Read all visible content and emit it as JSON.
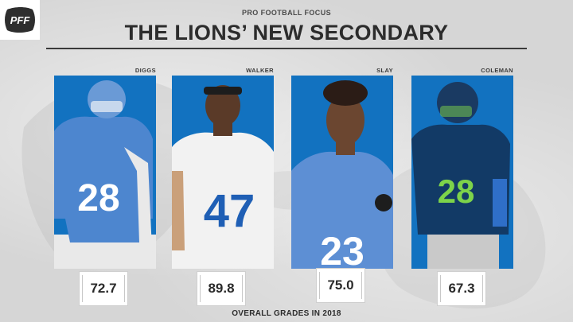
{
  "header": {
    "eyebrow": "PRO FOOTBALL FOCUS",
    "title": "THE LIONS’ NEW SECONDARY"
  },
  "logo": {
    "text": "PFF",
    "icon": "pff-logo-icon"
  },
  "players": [
    {
      "name": "DIGGS",
      "jersey": "28",
      "grade": "72.7",
      "team_colors": {
        "jersey": "#4d86cf",
        "numbers": "#ffffff",
        "helmet": "#6a9ad6"
      }
    },
    {
      "name": "WALKER",
      "jersey": "47",
      "grade": "89.8",
      "team_colors": {
        "jersey": "#f2f2f2",
        "numbers": "#1f5fb5",
        "helmet": "#1d1d1d"
      }
    },
    {
      "name": "SLAY",
      "jersey": "23",
      "grade": "75.0",
      "team_colors": {
        "jersey": "#5d8fd4",
        "numbers": "#ffffff",
        "helmet": "#2b1c16"
      }
    },
    {
      "name": "COLEMAN",
      "jersey": "28",
      "grade": "67.3",
      "team_colors": {
        "jersey": "#123a66",
        "numbers": "#7dd34a",
        "helmet": "#1a3a62"
      }
    }
  ],
  "footer": {
    "caption": "OVERALL GRADES IN 2018"
  },
  "colors": {
    "photo_bg": "#1272c0",
    "title": "#2c2c2c"
  }
}
